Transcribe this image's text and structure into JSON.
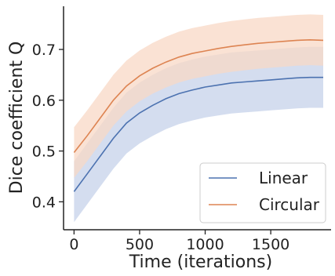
{
  "chart_data": {
    "type": "line",
    "title": "",
    "xlabel": "Time (iterations)",
    "ylabel": "Dice coefficient Q",
    "xlim": [
      -80,
      1960
    ],
    "ylim": [
      0.345,
      0.785
    ],
    "xticks": [
      0,
      500,
      1000,
      1500
    ],
    "yticks": [
      0.4,
      0.5,
      0.6,
      0.7
    ],
    "xtick_labels": [
      "0",
      "500",
      "1000",
      "1500"
    ],
    "ytick_labels": [
      "0.4",
      "0.5",
      "0.6",
      "0.7"
    ],
    "grid": false,
    "legend": "bottom-right",
    "x": [
      0,
      100,
      200,
      300,
      400,
      500,
      600,
      700,
      800,
      900,
      1000,
      1100,
      1200,
      1300,
      1400,
      1500,
      1600,
      1700,
      1800,
      1900
    ],
    "series": [
      {
        "name": "Linear",
        "color": "#4c72b0",
        "band_color": "#c5d2ea",
        "values": [
          0.42,
          0.455,
          0.49,
          0.525,
          0.555,
          0.575,
          0.59,
          0.603,
          0.613,
          0.62,
          0.626,
          0.63,
          0.634,
          0.636,
          0.638,
          0.64,
          0.642,
          0.644,
          0.645,
          0.645
        ],
        "lower": [
          0.36,
          0.395,
          0.43,
          0.465,
          0.495,
          0.515,
          0.53,
          0.543,
          0.553,
          0.56,
          0.566,
          0.57,
          0.574,
          0.576,
          0.578,
          0.58,
          0.582,
          0.584,
          0.585,
          0.585
        ],
        "upper": [
          0.48,
          0.515,
          0.55,
          0.585,
          0.615,
          0.635,
          0.65,
          0.663,
          0.673,
          0.68,
          0.686,
          0.69,
          0.694,
          0.696,
          0.698,
          0.7,
          0.702,
          0.704,
          0.705,
          0.705
        ]
      },
      {
        "name": "Circular",
        "color": "#dd8452",
        "band_color": "#f8d8c6",
        "values": [
          0.497,
          0.53,
          0.565,
          0.6,
          0.628,
          0.648,
          0.663,
          0.675,
          0.685,
          0.692,
          0.697,
          0.702,
          0.706,
          0.709,
          0.712,
          0.714,
          0.716,
          0.718,
          0.719,
          0.718
        ],
        "lower": [
          0.447,
          0.48,
          0.515,
          0.55,
          0.578,
          0.598,
          0.613,
          0.625,
          0.635,
          0.642,
          0.647,
          0.652,
          0.656,
          0.659,
          0.662,
          0.664,
          0.666,
          0.668,
          0.669,
          0.668
        ],
        "upper": [
          0.547,
          0.58,
          0.615,
          0.65,
          0.678,
          0.698,
          0.713,
          0.725,
          0.735,
          0.742,
          0.747,
          0.752,
          0.756,
          0.759,
          0.762,
          0.764,
          0.766,
          0.768,
          0.769,
          0.768
        ]
      }
    ]
  }
}
